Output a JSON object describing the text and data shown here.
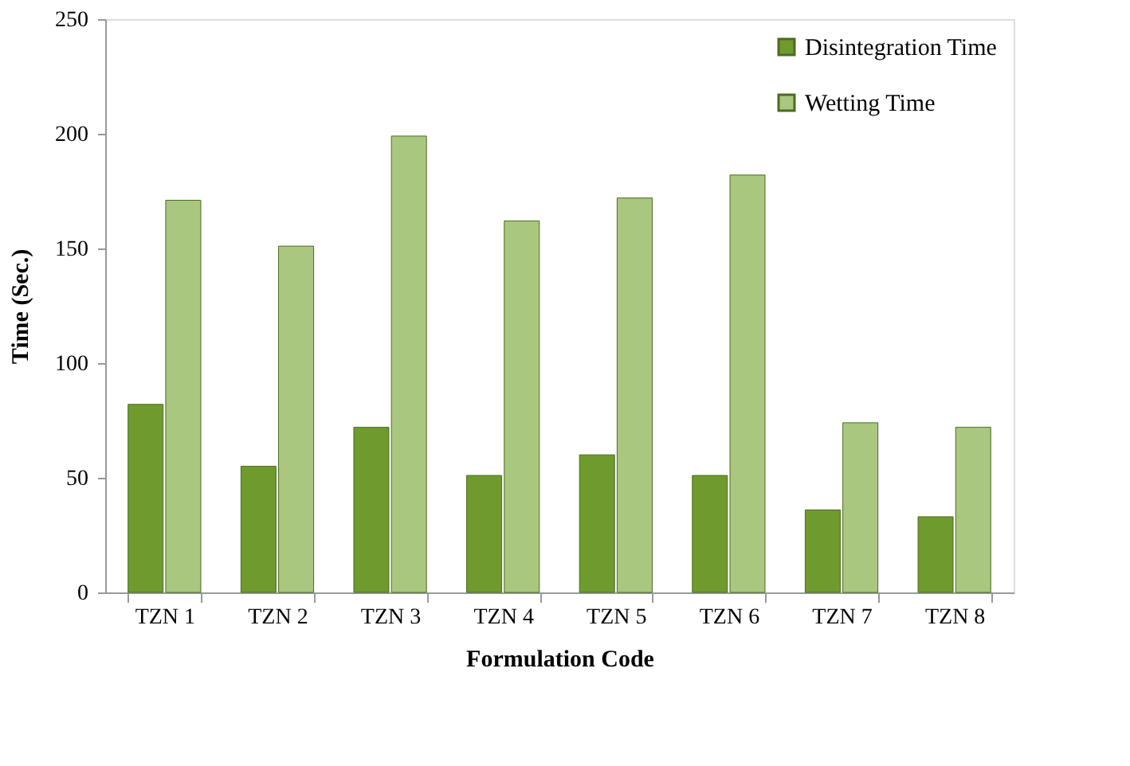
{
  "chart_data": {
    "type": "bar",
    "xlabel": "Formulation Code",
    "ylabel": "Time (Sec.)",
    "categories": [
      "TZN 1",
      "TZN 2",
      "TZN 3",
      "TZN 4",
      "TZN 5",
      "TZN 6",
      "TZN 7",
      "TZN 8"
    ],
    "series": [
      {
        "name": "Disintegration Time",
        "color": "#6f9a2e",
        "values": [
          82,
          55,
          72,
          51,
          60,
          51,
          36,
          33
        ]
      },
      {
        "name": "Wetting Time",
        "color": "#a9c77f",
        "values": [
          171,
          151,
          199,
          162,
          172,
          182,
          74,
          72
        ]
      }
    ],
    "ylim": [
      0,
      250
    ],
    "yticks": [
      0,
      50,
      100,
      150,
      200,
      250
    ],
    "grid": false,
    "legend": "top right"
  }
}
